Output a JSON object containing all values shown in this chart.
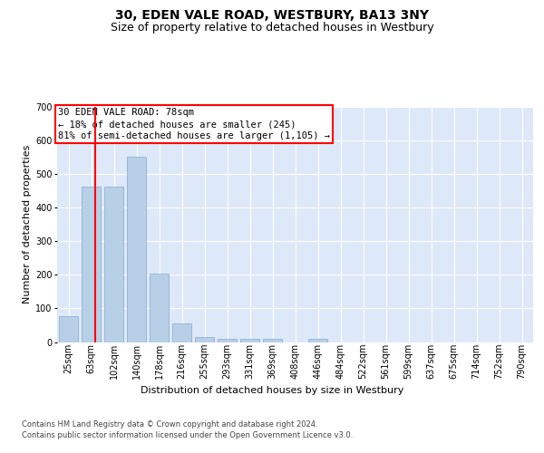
{
  "title": "30, EDEN VALE ROAD, WESTBURY, BA13 3NY",
  "subtitle": "Size of property relative to detached houses in Westbury",
  "xlabel": "Distribution of detached houses by size in Westbury",
  "ylabel": "Number of detached properties",
  "footnote1": "Contains HM Land Registry data © Crown copyright and database right 2024.",
  "footnote2": "Contains public sector information licensed under the Open Government Licence v3.0.",
  "bin_labels": [
    "25sqm",
    "63sqm",
    "102sqm",
    "140sqm",
    "178sqm",
    "216sqm",
    "255sqm",
    "293sqm",
    "331sqm",
    "369sqm",
    "408sqm",
    "446sqm",
    "484sqm",
    "522sqm",
    "561sqm",
    "599sqm",
    "637sqm",
    "675sqm",
    "714sqm",
    "752sqm",
    "790sqm"
  ],
  "bar_values": [
    78,
    462,
    462,
    550,
    203,
    55,
    14,
    9,
    9,
    9,
    0,
    9,
    0,
    0,
    0,
    0,
    0,
    0,
    0,
    0,
    0
  ],
  "bar_color": "#b8cfe8",
  "bar_edge_color": "#88aacc",
  "bg_color": "#dde8f8",
  "red_line_x": 1.18,
  "annotation_line1": "30 EDEN VALE ROAD: 78sqm",
  "annotation_line2": "← 18% of detached houses are smaller (245)",
  "annotation_line3": "81% of semi-detached houses are larger (1,105) →",
  "ylim_max": 700,
  "ytick_step": 100,
  "title_fontsize": 10,
  "subtitle_fontsize": 9,
  "ylabel_fontsize": 8,
  "tick_fontsize": 7,
  "xlabel_fontsize": 8,
  "footnote_fontsize": 6,
  "annotation_fontsize": 7.5
}
